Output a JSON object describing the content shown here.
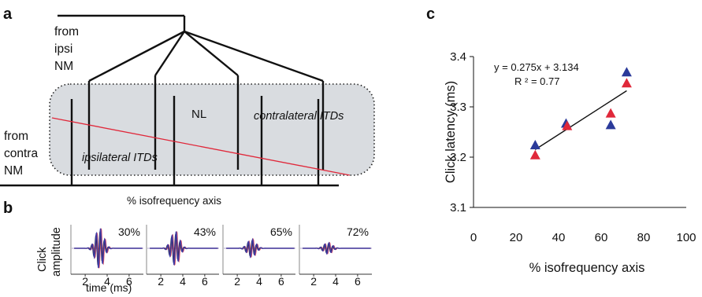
{
  "panel_a": {
    "letter": "a",
    "from_ipsi": [
      "from",
      "ipsi",
      "NM"
    ],
    "from_contra": [
      "from",
      "contra",
      "NM"
    ],
    "nl_label": "NL",
    "contralateral_label": "contralateral ITDs",
    "ipsilateral_label": "ipsilateral ITDs",
    "axis_label": "% isofrequency axis"
  },
  "panel_b": {
    "letter": "b",
    "ylabel_line1": "Click",
    "ylabel_line2": "amplitude",
    "xlabel": "time (ms)",
    "xticks": [
      "2",
      "4",
      "6"
    ],
    "subplots": [
      {
        "percent": "30%",
        "amplitude": 1.0
      },
      {
        "percent": "43%",
        "amplitude": 0.85
      },
      {
        "percent": "65%",
        "amplitude": 0.45
      },
      {
        "percent": "72%",
        "amplitude": 0.28
      }
    ],
    "colors": {
      "trace": "#3a3aa8",
      "red": "#e0283a",
      "black": "#111111"
    }
  },
  "chart_data": {
    "type": "scatter",
    "title": "",
    "xlabel": "% isofrequency axis",
    "ylabel": "Click latency (ms)",
    "xlim": [
      0,
      100
    ],
    "ylim": [
      3.1,
      3.4
    ],
    "xticks": [
      0,
      20,
      40,
      60,
      80,
      100
    ],
    "yticks": [
      3.1,
      3.2,
      3.3,
      3.4
    ],
    "series": [
      {
        "color": "#2b3a9a",
        "marker": "triangle",
        "x": [
          29,
          43.5,
          64.5,
          72
        ],
        "y": [
          3.225,
          3.268,
          3.265,
          3.37
        ]
      },
      {
        "color": "#e0283a",
        "marker": "triangle",
        "x": [
          29,
          44,
          64.5,
          72
        ],
        "y": [
          3.205,
          3.263,
          3.288,
          3.348
        ]
      }
    ],
    "fit": {
      "slope_per_100": 0.275,
      "intercept": 3.134,
      "x_range": [
        29,
        72
      ],
      "y_range": [
        3.215,
        3.332
      ]
    },
    "equation": "y = 0.275x + 3.134",
    "r2": "R ² = 0.77",
    "panel_letter": "c",
    "colors": {
      "blue": "#2b3a9a",
      "red": "#e0283a",
      "line": "#111111"
    }
  }
}
